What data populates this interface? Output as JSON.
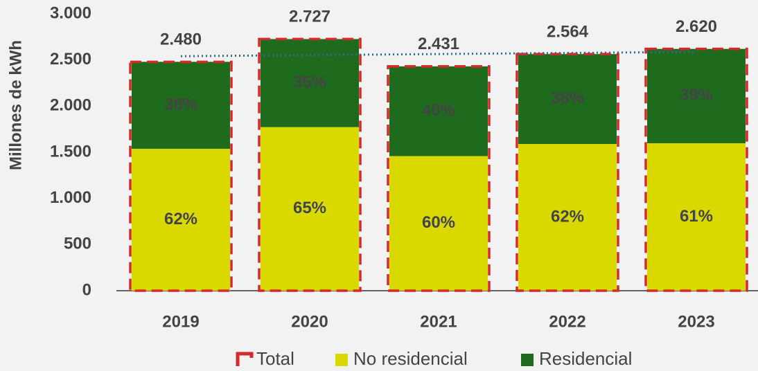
{
  "chart_data": {
    "type": "bar",
    "stacked": true,
    "y_label": "Millones de kWh",
    "categories": [
      "2019",
      "2020",
      "2021",
      "2022",
      "2023"
    ],
    "series": [
      {
        "name": "No residencial",
        "color": "#d9d900",
        "values": [
          1538,
          1773,
          1459,
          1590,
          1598
        ],
        "share_labels": [
          "62%",
          "65%",
          "60%",
          "62%",
          "61%"
        ]
      },
      {
        "name": "Residencial",
        "color": "#1e6b1e",
        "values": [
          942,
          954,
          972,
          974,
          1022
        ],
        "share_labels": [
          "38%",
          "35%",
          "40%",
          "38%",
          "39%"
        ]
      }
    ],
    "total": {
      "name": "Total",
      "color": "#d42a2a",
      "values": [
        2480,
        2727,
        2431,
        2564,
        2620
      ],
      "value_labels": [
        "2.480",
        "2.727",
        "2.431",
        "2.564",
        "2.620"
      ]
    },
    "trendline": true,
    "trendline_color": "#2a6f97",
    "ylim": [
      0,
      3000
    ],
    "yticks": [
      0,
      500,
      {
        "value": 1000,
        "label": "1.000"
      },
      {
        "value": 1500,
        "label": "1.500"
      },
      {
        "value": 2000,
        "label": "2.000"
      },
      {
        "value": 2500,
        "label": "2.500"
      },
      {
        "value": 3000,
        "label": "3.000"
      }
    ]
  }
}
